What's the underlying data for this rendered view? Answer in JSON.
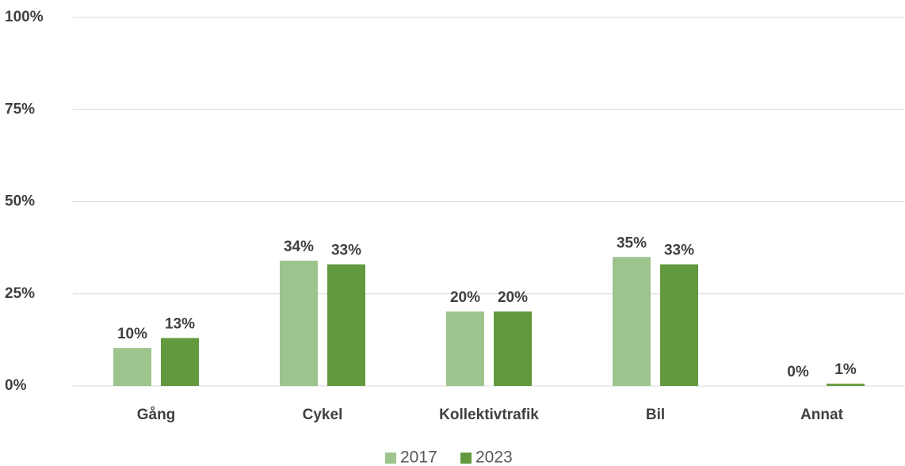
{
  "chart_data": {
    "type": "bar",
    "categories": [
      "Gång",
      "Cykel",
      "Kollektivtrafik",
      "Bil",
      "Annat"
    ],
    "series": [
      {
        "name": "2017",
        "color": "#9dc48d",
        "values": [
          10.3,
          34,
          20.2,
          35,
          0
        ],
        "value_labels": [
          "10%",
          "34%",
          "20%",
          "35%",
          "0%"
        ]
      },
      {
        "name": "2023",
        "color": "#62993e",
        "values": [
          13,
          33,
          20.2,
          33,
          0.6
        ],
        "value_labels": [
          "13%",
          "33%",
          "20%",
          "33%",
          "1%"
        ]
      }
    ],
    "ylim": [
      0,
      100
    ],
    "yticks": [
      {
        "value": 0,
        "label": "0%"
      },
      {
        "value": 25,
        "label": "25%"
      },
      {
        "value": 50,
        "label": "50%"
      },
      {
        "value": 75,
        "label": "75%"
      },
      {
        "value": 100,
        "label": "100%"
      }
    ],
    "grid": true,
    "legend": "bottom"
  }
}
